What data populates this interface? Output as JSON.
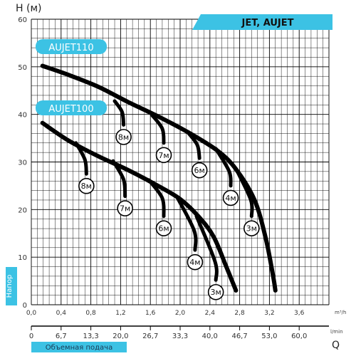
{
  "chart_data": {
    "type": "line",
    "title_badge": "JET, AUJET",
    "y_axis": {
      "label": "H (м)",
      "side_label": "Напор",
      "ylim": [
        0,
        60
      ],
      "ticks": [
        0,
        10,
        20,
        30,
        40,
        50,
        60
      ]
    },
    "x_axis": {
      "label": "Q",
      "xlim": [
        0,
        4.0
      ],
      "ticks": [
        "0,0",
        "0,4",
        "0,8",
        "1,2",
        "1,6",
        "2,0",
        "2,4",
        "2,8",
        "3,2",
        "3,6"
      ],
      "tick_values": [
        0,
        0.4,
        0.8,
        1.2,
        1.6,
        2.0,
        2.4,
        2.8,
        3.2,
        3.6
      ],
      "unit": "m³/h"
    },
    "x_axis_lpm": {
      "label": "Объемная подача",
      "ticks": [
        "0",
        "6,7",
        "13,3",
        "20,0",
        "26,7",
        "33,3",
        "40,0",
        "46,7",
        "53,0",
        "60,0"
      ],
      "unit": "l/min"
    },
    "series": [
      {
        "name": "AUJET110",
        "points": [
          [
            0.15,
            50.2
          ],
          [
            0.5,
            48.3
          ],
          [
            0.9,
            45.8
          ],
          [
            1.3,
            42.6
          ],
          [
            1.7,
            39.6
          ],
          [
            2.1,
            36.3
          ],
          [
            2.5,
            32.4
          ],
          [
            2.75,
            28.5
          ],
          [
            3.0,
            22.0
          ],
          [
            3.15,
            14.0
          ],
          [
            3.25,
            6.0
          ],
          [
            3.28,
            3.0
          ]
        ],
        "branches": [
          {
            "label": "8м",
            "points": [
              [
                1.12,
                42.8
              ],
              [
                1.22,
                40.5
              ],
              [
                1.24,
                37.8
              ]
            ]
          },
          {
            "label": "7м",
            "points": [
              [
                1.62,
                39.9
              ],
              [
                1.76,
                37.0
              ],
              [
                1.78,
                34.0
              ]
            ]
          },
          {
            "label": "6м",
            "points": [
              [
                2.1,
                36.3
              ],
              [
                2.23,
                33.6
              ],
              [
                2.26,
                30.8
              ]
            ]
          },
          {
            "label": "4м",
            "points": [
              [
                2.48,
                32.8
              ],
              [
                2.66,
                28.0
              ],
              [
                2.68,
                25.0
              ]
            ]
          },
          {
            "label": "3м",
            "points": [
              [
                2.76,
                28.3
              ],
              [
                2.95,
                22.0
              ],
              [
                2.96,
                18.6
              ]
            ]
          }
        ]
      },
      {
        "name": "AUJET100",
        "points": [
          [
            0.15,
            38.2
          ],
          [
            0.5,
            34.5
          ],
          [
            0.9,
            31.2
          ],
          [
            1.3,
            28.3
          ],
          [
            1.7,
            25.0
          ],
          [
            2.0,
            22.2
          ],
          [
            2.25,
            18.5
          ],
          [
            2.45,
            14.3
          ],
          [
            2.62,
            8.0
          ],
          [
            2.75,
            3.0
          ]
        ],
        "branches": [
          {
            "label": "8м",
            "points": [
              [
                0.6,
                34.0
              ],
              [
                0.72,
                30.5
              ],
              [
                0.74,
                27.5
              ]
            ]
          },
          {
            "label": "7м",
            "points": [
              [
                1.1,
                30.2
              ],
              [
                1.24,
                26.3
              ],
              [
                1.26,
                22.8
              ]
            ]
          },
          {
            "label": "6м",
            "points": [
              [
                1.58,
                26.2
              ],
              [
                1.76,
                22.4
              ],
              [
                1.78,
                18.6
              ]
            ]
          },
          {
            "label": "4м",
            "points": [
              [
                1.96,
                22.6
              ],
              [
                2.19,
                15.5
              ],
              [
                2.2,
                11.5
              ]
            ]
          },
          {
            "label": "3м",
            "points": [
              [
                2.22,
                18.6
              ],
              [
                2.47,
                9.0
              ],
              [
                2.48,
                5.2
              ]
            ]
          }
        ]
      }
    ],
    "grid": true,
    "colors": {
      "curve": "#000000",
      "badge": "#3cc2e4",
      "grid": "#000000",
      "label": "#3cc2e4"
    }
  }
}
